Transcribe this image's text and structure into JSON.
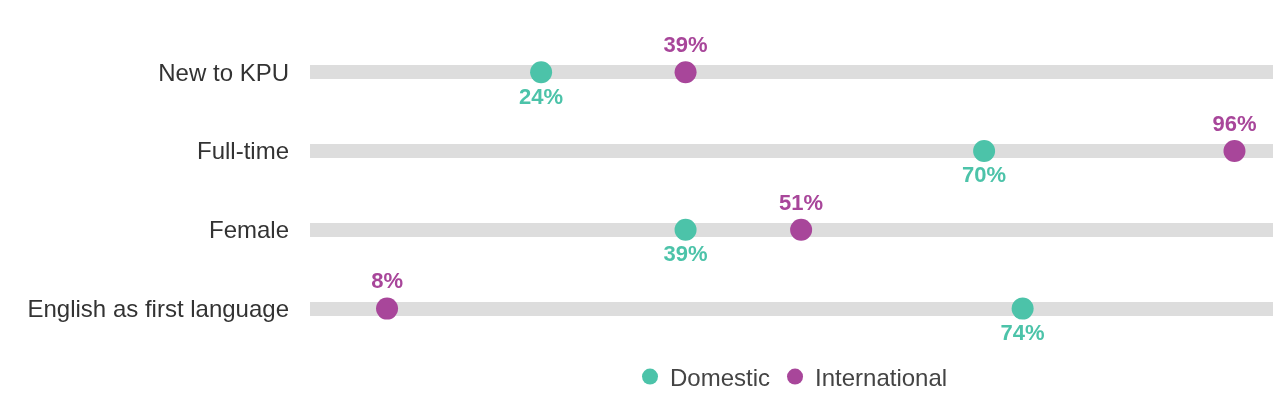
{
  "chart_data": {
    "type": "scatter",
    "orientation": "horizontal",
    "categories": [
      "New to KPU",
      "Full-time",
      "Female",
      "English as first language"
    ],
    "xlim": [
      0,
      100
    ],
    "tick_labels": "y",
    "grid": "y",
    "legend": "bottom",
    "marker": "circle",
    "series": [
      {
        "name": "Domestic",
        "color": "#4cc3a9",
        "values": [
          24,
          70,
          39,
          74
        ],
        "value_labels": [
          "24%",
          "70%",
          "39%",
          "74%"
        ]
      },
      {
        "name": "International",
        "color": "#a8469a",
        "values": [
          39,
          96,
          51,
          8
        ],
        "value_labels": [
          "39%",
          "96%",
          "51%",
          "8%"
        ]
      }
    ]
  }
}
